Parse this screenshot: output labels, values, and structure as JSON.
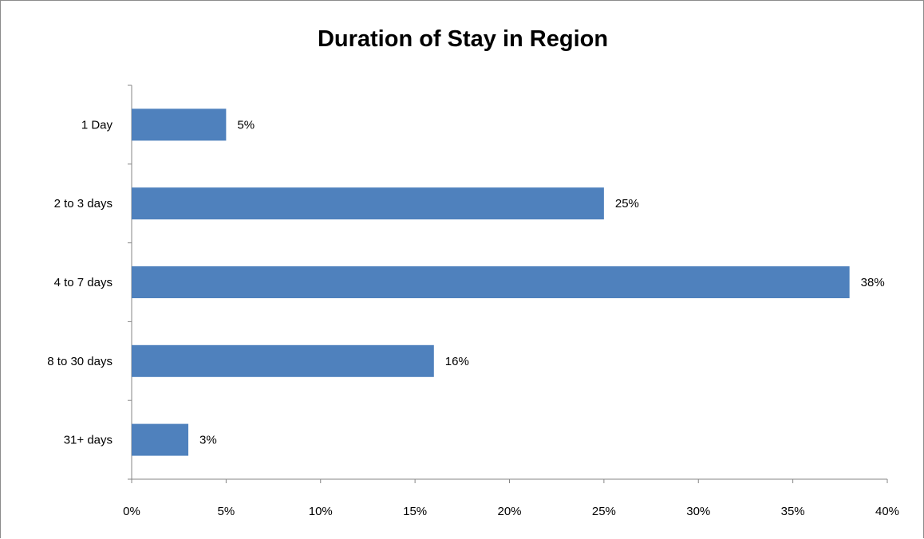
{
  "chart_data": {
    "type": "bar",
    "orientation": "horizontal",
    "title": "Duration of Stay in Region",
    "xlabel": "",
    "ylabel": "",
    "categories": [
      "1 Day",
      "2 to 3 days",
      "4 to 7 days",
      "8 to 30 days",
      "31+ days"
    ],
    "values": [
      5,
      25,
      38,
      16,
      3
    ],
    "data_labels": [
      "5%",
      "25%",
      "38%",
      "16%",
      "3%"
    ],
    "xlim": [
      0,
      40
    ],
    "x_ticks": [
      0,
      5,
      10,
      15,
      20,
      25,
      30,
      35,
      40
    ],
    "x_tick_labels": [
      "0%",
      "5%",
      "10%",
      "15%",
      "20%",
      "25%",
      "30%",
      "35%",
      "40%"
    ],
    "grid": false,
    "legend": "none",
    "bar_color": "#4f81bd"
  }
}
